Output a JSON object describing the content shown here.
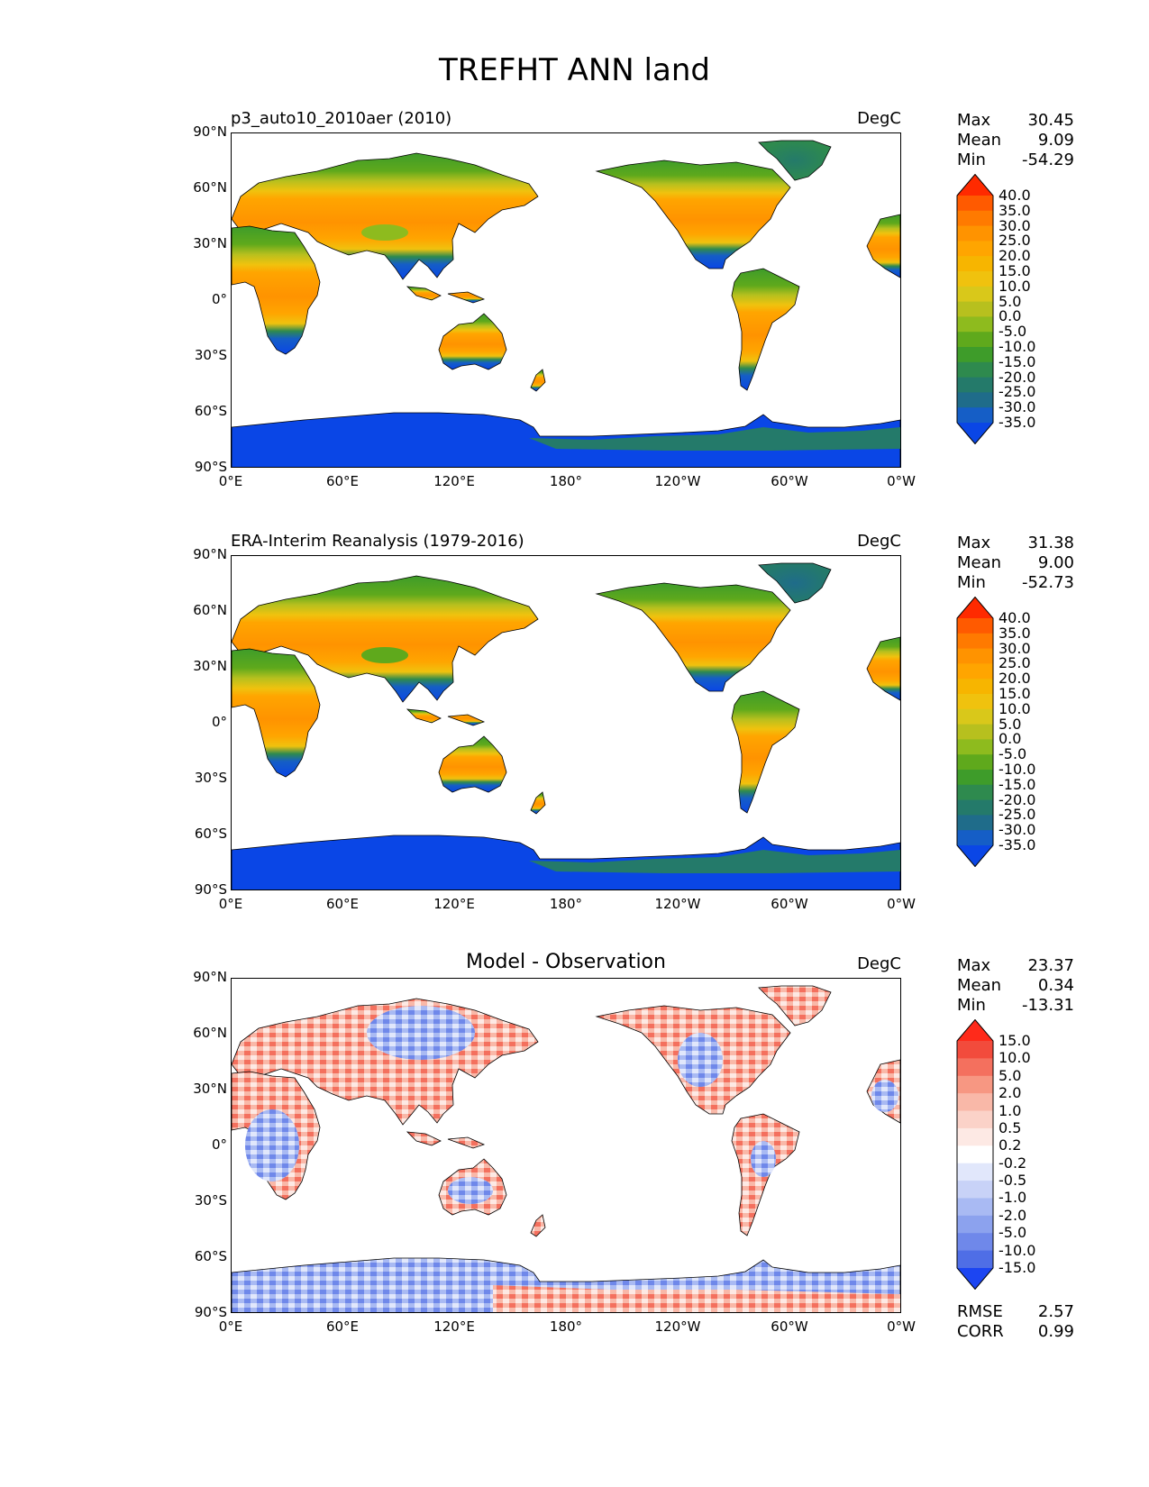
{
  "title": "TREFHT ANN land",
  "axes": {
    "lat_labels": [
      "90°N",
      "60°N",
      "30°N",
      "0°",
      "30°S",
      "60°S",
      "90°S"
    ],
    "lon_labels": [
      "0°E",
      "60°E",
      "120°E",
      "180°",
      "120°W",
      "60°W",
      "0°W"
    ]
  },
  "panels": [
    {
      "title": "p3_auto10_2010aer (2010)",
      "units": "DegC",
      "stats": [
        {
          "label": "Max",
          "value": "30.45"
        },
        {
          "label": "Mean",
          "value": "9.09"
        },
        {
          "label": "Min",
          "value": "-54.29"
        }
      ],
      "colorbar": {
        "labels": [
          "40.0",
          "35.0",
          "30.0",
          "25.0",
          "20.0",
          "15.0",
          "10.0",
          "5.0",
          "0.0",
          "-5.0",
          "-10.0",
          "-15.0",
          "-20.0",
          "-25.0",
          "-30.0",
          "-35.0"
        ],
        "colors": [
          "#ff2a00",
          "#ff5a00",
          "#ff7a00",
          "#ff9300",
          "#ffa500",
          "#f7b500",
          "#f0c20e",
          "#d9c81a",
          "#b7c01e",
          "#8ebb1e",
          "#5fa91c",
          "#3e9c2a",
          "#2e8a4e",
          "#247a6a",
          "#1f6c8a",
          "#155ec6",
          "#0a46e6"
        ]
      }
    },
    {
      "title": "ERA-Interim Reanalysis (1979-2016)",
      "units": "DegC",
      "stats": [
        {
          "label": "Max",
          "value": "31.38"
        },
        {
          "label": "Mean",
          "value": "9.00"
        },
        {
          "label": "Min",
          "value": "-52.73"
        }
      ],
      "colorbar": {
        "labels": [
          "40.0",
          "35.0",
          "30.0",
          "25.0",
          "20.0",
          "15.0",
          "10.0",
          "5.0",
          "0.0",
          "-5.0",
          "-10.0",
          "-15.0",
          "-20.0",
          "-25.0",
          "-30.0",
          "-35.0"
        ],
        "colors": [
          "#ff2a00",
          "#ff5a00",
          "#ff7a00",
          "#ff9300",
          "#ffa500",
          "#f7b500",
          "#f0c20e",
          "#d9c81a",
          "#b7c01e",
          "#8ebb1e",
          "#5fa91c",
          "#3e9c2a",
          "#2e8a4e",
          "#247a6a",
          "#1f6c8a",
          "#155ec6",
          "#0a46e6"
        ]
      }
    },
    {
      "title": "Model - Observation",
      "units": "DegC",
      "stats": [
        {
          "label": "Max",
          "value": "23.37"
        },
        {
          "label": "Mean",
          "value": "0.34"
        },
        {
          "label": "Min",
          "value": "-13.31"
        }
      ],
      "extra_stats": [
        {
          "label": "RMSE",
          "value": "2.57"
        },
        {
          "label": "CORR",
          "value": "0.99"
        }
      ],
      "colorbar": {
        "labels": [
          "15.0",
          "10.0",
          "5.0",
          "2.0",
          "1.0",
          "0.5",
          "0.2",
          "-0.2",
          "-0.5",
          "-1.0",
          "-2.0",
          "-5.0",
          "-10.0",
          "-15.0"
        ],
        "colors": [
          "#ff2a1a",
          "#f24b3c",
          "#f4705e",
          "#f79782",
          "#f9b8a8",
          "#fbd2c8",
          "#fde9e4",
          "#ffffff",
          "#e1e7fb",
          "#c8d2f7",
          "#a9baf3",
          "#8ca2ee",
          "#6f88ea",
          "#4f6ee6",
          "#1c45f2"
        ]
      }
    }
  ]
}
